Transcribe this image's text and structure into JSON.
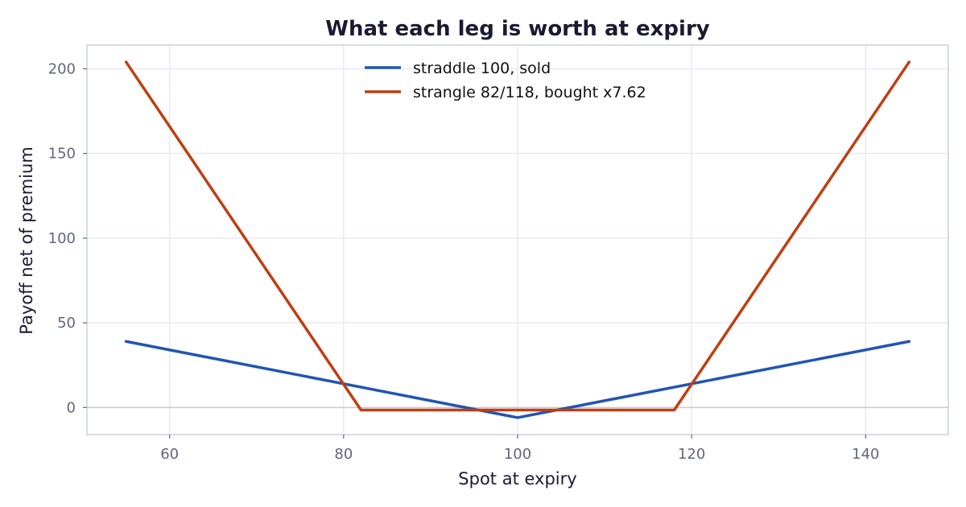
{
  "chart_data": {
    "type": "line",
    "title": "What each leg is worth at expiry",
    "xlabel": "Spot at expiry",
    "ylabel": "Payoff net of premium",
    "xlim": [
      50.5,
      149.5
    ],
    "ylim": [
      -16,
      214
    ],
    "xticks": [
      60,
      80,
      100,
      120,
      140
    ],
    "yticks": [
      0,
      50,
      100,
      150,
      200
    ],
    "grid": true,
    "legend_position": "top-center",
    "series": [
      {
        "name": "straddle 100, sold",
        "color": "#2155b4",
        "points": [
          [
            55,
            39
          ],
          [
            100,
            -6
          ],
          [
            145,
            39
          ]
        ]
      },
      {
        "name": "strangle 82/118, bought x7.62",
        "color": "#bf3f13",
        "points": [
          [
            55,
            204
          ],
          [
            82,
            -1.5
          ],
          [
            118,
            -1.5
          ],
          [
            145,
            204
          ]
        ]
      }
    ]
  }
}
